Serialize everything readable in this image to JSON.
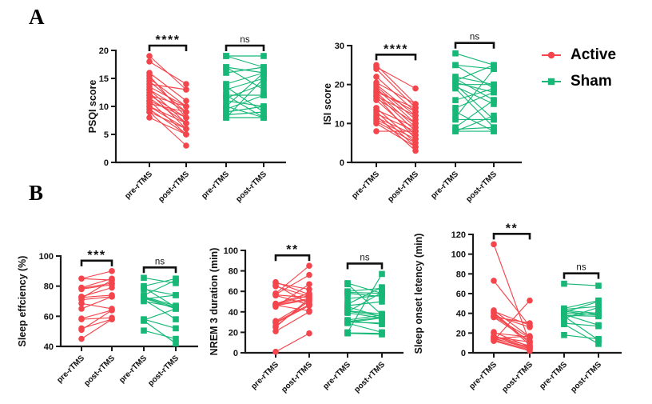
{
  "figure": {
    "panel_a_label": "A",
    "panel_b_label": "B"
  },
  "colors": {
    "active": "#f4454c",
    "sham": "#17b877",
    "axis": "#1a1a1a"
  },
  "legend": {
    "position": "right-of-panel-A",
    "items": [
      {
        "label": "Active",
        "color": "#f4454c",
        "marker": "circle"
      },
      {
        "label": "Sham",
        "color": "#17b877",
        "marker": "square"
      }
    ]
  },
  "chart_data": [
    {
      "type": "paired-line",
      "panel": "A",
      "ylabel": "PSQI score",
      "ylim": [
        0,
        20
      ],
      "yticks": [
        0,
        5,
        10,
        15,
        20
      ],
      "x_tick_labels": [
        "pre-rTMS",
        "post-rTMS",
        "pre-rTMS",
        "post-rTMS"
      ],
      "groups": [
        {
          "name": "Active",
          "color": "#f4454c",
          "marker": "circle",
          "significance": "****",
          "pairs": [
            [
              19,
              13
            ],
            [
              18,
              14
            ],
            [
              16,
              11
            ],
            [
              15.5,
              8
            ],
            [
              15,
              10
            ],
            [
              14.5,
              9
            ],
            [
              14,
              13
            ],
            [
              13.5,
              10
            ],
            [
              13,
              7
            ],
            [
              13,
              9
            ],
            [
              12.5,
              6
            ],
            [
              12,
              8
            ],
            [
              12,
              10
            ],
            [
              11.5,
              7
            ],
            [
              11,
              5
            ],
            [
              11,
              8
            ],
            [
              10.5,
              9
            ],
            [
              10,
              6
            ],
            [
              10,
              7
            ],
            [
              9.5,
              5
            ],
            [
              9,
              6
            ],
            [
              9,
              3
            ],
            [
              8,
              5
            ]
          ]
        },
        {
          "name": "Sham",
          "color": "#17b877",
          "marker": "square",
          "significance": "ns",
          "pairs": [
            [
              19,
              17
            ],
            [
              19,
              19
            ],
            [
              17,
              16
            ],
            [
              17,
              13
            ],
            [
              16,
              17
            ],
            [
              14,
              16
            ],
            [
              13.5,
              9
            ],
            [
              13,
              15
            ],
            [
              12,
              12
            ],
            [
              12,
              8
            ],
            [
              11.5,
              14
            ],
            [
              11,
              10
            ],
            [
              10,
              16
            ],
            [
              10,
              8
            ],
            [
              9.5,
              12
            ],
            [
              9,
              10
            ],
            [
              8.5,
              9
            ],
            [
              8,
              8
            ],
            [
              8,
              15
            ]
          ]
        }
      ]
    },
    {
      "type": "paired-line",
      "panel": "A",
      "ylabel": "ISI score",
      "ylim": [
        0,
        30
      ],
      "yticks": [
        0,
        10,
        20,
        30
      ],
      "x_tick_labels": [
        "pre-rTMS",
        "post-rTMS",
        "pre-rTMS",
        "post-rTMS"
      ],
      "groups": [
        {
          "name": "Active",
          "color": "#f4454c",
          "marker": "circle",
          "significance": "****",
          "pairs": [
            [
              25,
              15
            ],
            [
              24.5,
              19
            ],
            [
              24,
              14
            ],
            [
              22,
              13
            ],
            [
              20.5,
              15
            ],
            [
              20,
              12
            ],
            [
              19.5,
              11
            ],
            [
              19,
              10
            ],
            [
              18.5,
              13
            ],
            [
              18,
              9
            ],
            [
              18,
              14
            ],
            [
              17.5,
              8
            ],
            [
              17,
              12
            ],
            [
              17,
              6
            ],
            [
              16.5,
              10
            ],
            [
              16,
              7
            ],
            [
              14,
              5
            ],
            [
              13.5,
              9
            ],
            [
              13,
              4
            ],
            [
              12.5,
              8
            ],
            [
              12,
              3
            ],
            [
              11.5,
              7
            ],
            [
              11,
              6
            ],
            [
              10.5,
              5
            ],
            [
              10,
              4
            ],
            [
              8,
              8
            ]
          ]
        },
        {
          "name": "Sham",
          "color": "#17b877",
          "marker": "square",
          "significance": "ns",
          "pairs": [
            [
              28,
              25
            ],
            [
              25,
              24
            ],
            [
              25,
              19
            ],
            [
              22,
              20
            ],
            [
              21.5,
              16
            ],
            [
              21,
              25
            ],
            [
              20.5,
              18
            ],
            [
              20,
              20
            ],
            [
              20,
              11
            ],
            [
              19.5,
              15
            ],
            [
              19,
              9
            ],
            [
              16,
              19
            ],
            [
              14,
              18
            ],
            [
              13,
              8
            ],
            [
              11.5,
              24
            ],
            [
              11,
              11
            ],
            [
              9,
              16
            ],
            [
              8.5,
              9
            ],
            [
              8,
              12
            ],
            [
              8,
              8
            ]
          ]
        }
      ]
    },
    {
      "type": "paired-line",
      "panel": "B",
      "ylabel": "Sleep effciency (%)",
      "ylim": [
        40,
        100
      ],
      "yticks": [
        40,
        60,
        80,
        100
      ],
      "x_tick_labels": [
        "pre-rTMS",
        "post-rTMS",
        "pre-rTMS",
        "post-rTMS"
      ],
      "groups": [
        {
          "name": "Active",
          "color": "#f4454c",
          "marker": "circle",
          "significance": "***",
          "pairs": [
            [
              85,
              90
            ],
            [
              85,
              84
            ],
            [
              79,
              85
            ],
            [
              78.5,
              82
            ],
            [
              78,
              81
            ],
            [
              73,
              79
            ],
            [
              72.5,
              74
            ],
            [
              72,
              84
            ],
            [
              71,
              73
            ],
            [
              68.5,
              65
            ],
            [
              65,
              73
            ],
            [
              58.5,
              64
            ],
            [
              58,
              59
            ],
            [
              52,
              58
            ],
            [
              51,
              64
            ],
            [
              45,
              58
            ]
          ]
        },
        {
          "name": "Sham",
          "color": "#17b877",
          "marker": "square",
          "significance": "ns",
          "pairs": [
            [
              85.5,
              82
            ],
            [
              80,
              85
            ],
            [
              79,
              66
            ],
            [
              78,
              74
            ],
            [
              74,
              84
            ],
            [
              73,
              67
            ],
            [
              72.5,
              66
            ],
            [
              72,
              65
            ],
            [
              71.5,
              74
            ],
            [
              71,
              58
            ],
            [
              70,
              66
            ],
            [
              58,
              52
            ],
            [
              57.5,
              65
            ],
            [
              57,
              42
            ],
            [
              50.5,
              45
            ]
          ]
        }
      ]
    },
    {
      "type": "paired-line",
      "panel": "B",
      "ylabel": "NREM 3 duration (min)",
      "ylim": [
        0,
        100
      ],
      "yticks": [
        0,
        20,
        40,
        60,
        80,
        100
      ],
      "x_tick_labels": [
        "pre-rTMS",
        "post-rTMS",
        "pre-rTMS",
        "post-rTMS"
      ],
      "groups": [
        {
          "name": "Active",
          "color": "#f4454c",
          "marker": "circle",
          "significance": "**",
          "pairs": [
            [
              69,
              57
            ],
            [
              68,
              62
            ],
            [
              66,
              48
            ],
            [
              65,
              55
            ],
            [
              58,
              85
            ],
            [
              57,
              76
            ],
            [
              56.5,
              54
            ],
            [
              56,
              47
            ],
            [
              48,
              58
            ],
            [
              47.5,
              56
            ],
            [
              47,
              53
            ],
            [
              46.5,
              41
            ],
            [
              46,
              52
            ],
            [
              45,
              67
            ],
            [
              31,
              50
            ],
            [
              30,
              47
            ],
            [
              29,
              46
            ],
            [
              26,
              51
            ],
            [
              25,
              53
            ],
            [
              21,
              40
            ],
            [
              1,
              19
            ]
          ]
        },
        {
          "name": "Sham",
          "color": "#17b877",
          "marker": "square",
          "significance": "ns",
          "pairs": [
            [
              68,
              58
            ],
            [
              67,
              37
            ],
            [
              60,
              63
            ],
            [
              59,
              58
            ],
            [
              58,
              55
            ],
            [
              53,
              56
            ],
            [
              47.5,
              64
            ],
            [
              46,
              50
            ],
            [
              45,
              35
            ],
            [
              41,
              38
            ],
            [
              40.5,
              36
            ],
            [
              40,
              59
            ],
            [
              39,
              34
            ],
            [
              32,
              37
            ],
            [
              31,
              28
            ],
            [
              30.5,
              35
            ],
            [
              30,
              29
            ],
            [
              29.5,
              34
            ],
            [
              29,
              20
            ],
            [
              20,
              77
            ],
            [
              19.5,
              19
            ],
            [
              19,
              18
            ]
          ]
        }
      ]
    },
    {
      "type": "paired-line",
      "panel": "B",
      "ylabel": "Sleep onset letency (min)",
      "ylim": [
        0,
        120
      ],
      "yticks": [
        0,
        20,
        40,
        60,
        80,
        100,
        120
      ],
      "x_tick_labels": [
        "pre-rTMS",
        "post-rTMS",
        "pre-rTMS",
        "post-rTMS"
      ],
      "groups": [
        {
          "name": "Active",
          "color": "#f4454c",
          "marker": "circle",
          "significance": "**",
          "pairs": [
            [
              110,
              10
            ],
            [
              73,
              27
            ],
            [
              43,
              16
            ],
            [
              42,
              28
            ],
            [
              41,
              10
            ],
            [
              40,
              8
            ],
            [
              38,
              26
            ],
            [
              37,
              15
            ],
            [
              36.5,
              30
            ],
            [
              36,
              12
            ],
            [
              21,
              6
            ],
            [
              20,
              16
            ],
            [
              17,
              7
            ],
            [
              16.5,
              5
            ],
            [
              16,
              11
            ],
            [
              15,
              4
            ],
            [
              14.5,
              17
            ],
            [
              14,
              6
            ],
            [
              13,
              3
            ],
            [
              12.5,
              53
            ],
            [
              12,
              2
            ]
          ]
        },
        {
          "name": "Sham",
          "color": "#17b877",
          "marker": "square",
          "significance": "ns",
          "pairs": [
            [
              70,
              68
            ],
            [
              45,
              53
            ],
            [
              44,
              47
            ],
            [
              43,
              40
            ],
            [
              42,
              38
            ],
            [
              41,
              52
            ],
            [
              40,
              39
            ],
            [
              39,
              28
            ],
            [
              38,
              37
            ],
            [
              37,
              13
            ],
            [
              36,
              41
            ],
            [
              35,
              46
            ],
            [
              30,
              27
            ],
            [
              29,
              9
            ],
            [
              18,
              14
            ]
          ]
        }
      ]
    }
  ]
}
